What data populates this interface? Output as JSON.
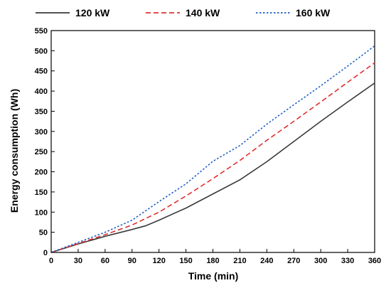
{
  "chart_data": {
    "type": "line",
    "title": "",
    "xlabel": "Time (min)",
    "ylabel": "Energy consumption (Wh)",
    "xlim": [
      0,
      360
    ],
    "ylim": [
      0,
      550
    ],
    "xticks": [
      0,
      30,
      60,
      90,
      120,
      150,
      180,
      210,
      240,
      270,
      300,
      330,
      360
    ],
    "yticks": [
      0,
      50,
      100,
      150,
      200,
      250,
      300,
      350,
      400,
      450,
      500,
      550
    ],
    "grid": false,
    "legend_position": "top",
    "series": [
      {
        "name": "120 kW",
        "color": "#3a3a3a",
        "dash": "solid",
        "x": [
          0,
          30,
          60,
          90,
          105,
          120,
          150,
          180,
          210,
          240,
          270,
          300,
          330,
          360
        ],
        "y": [
          0,
          21,
          40,
          57,
          66,
          80,
          110,
          145,
          180,
          225,
          275,
          325,
          373,
          420
        ]
      },
      {
        "name": "140 kW",
        "color": "#e03030",
        "dash": "dashed",
        "x": [
          0,
          30,
          60,
          90,
          120,
          150,
          180,
          210,
          240,
          270,
          300,
          330,
          360
        ],
        "y": [
          0,
          22,
          44,
          68,
          100,
          140,
          183,
          228,
          278,
          325,
          373,
          422,
          470
        ]
      },
      {
        "name": "160 kW",
        "color": "#1f5fc7",
        "dash": "dotted",
        "x": [
          0,
          30,
          60,
          90,
          120,
          150,
          180,
          210,
          240,
          270,
          300,
          330,
          360
        ],
        "y": [
          0,
          25,
          50,
          80,
          126,
          170,
          226,
          265,
          318,
          366,
          413,
          462,
          512
        ]
      }
    ]
  }
}
